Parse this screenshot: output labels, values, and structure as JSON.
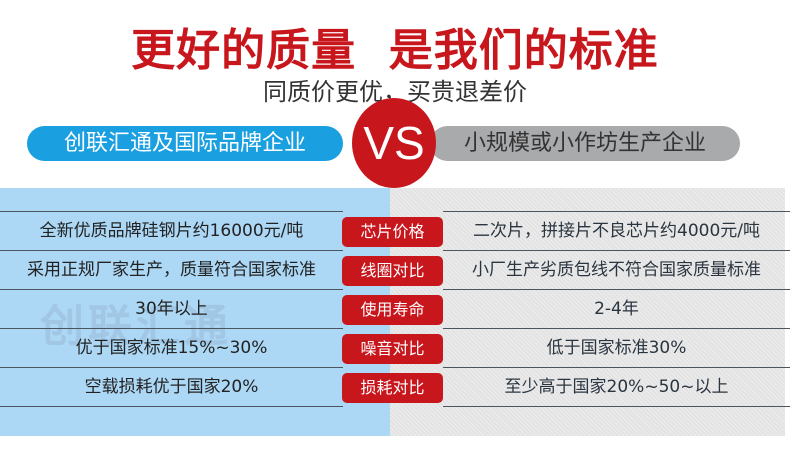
{
  "header": {
    "title": "更好的质量  是我们的标准",
    "subtitle": "同质价更优，买贵退差价"
  },
  "versus": {
    "left": "创联汇通及国际品牌企业",
    "vs": "VS",
    "right": "小规模或小作坊生产企业"
  },
  "watermark": "创联汇通",
  "colors": {
    "accent_red": "#c8161d",
    "brand_blue": "#1a9fe0",
    "panel_blue": "#acd8f6",
    "panel_grey": "#e3e3e3"
  },
  "rows": [
    {
      "label": "芯片价格",
      "ours": "全新优质品牌硅钢片约16000元/吨",
      "theirs": "二次片，拼接片不良芯片约4000元/吨"
    },
    {
      "label": "线圈对比",
      "ours": "采用正规厂家生产，质量符合国家标准",
      "theirs": "小厂生产劣质包线不符合国家质量标准"
    },
    {
      "label": "使用寿命",
      "ours": "30年以上",
      "theirs": "2-4年"
    },
    {
      "label": "噪音对比",
      "ours": "优于国家标准15%~30%",
      "theirs": "低于国家标准30%"
    },
    {
      "label": "损耗对比",
      "ours": "空载损耗优于国家20%",
      "theirs": "至少高于国家20%~50~以上"
    }
  ]
}
